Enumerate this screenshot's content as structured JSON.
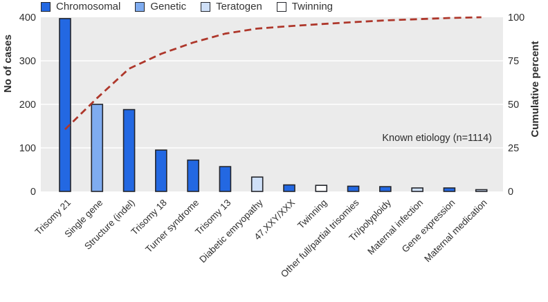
{
  "legend": {
    "items": [
      {
        "label": "Chromosomal",
        "color_key": "chromosomal"
      },
      {
        "label": "Genetic",
        "color_key": "genetic"
      },
      {
        "label": "Teratogen",
        "color_key": "teratogen"
      },
      {
        "label": "Twinning",
        "color_key": "twinning"
      }
    ]
  },
  "chart_data": {
    "type": "bar",
    "subtype": "pareto-with-cumulative-line",
    "categories": [
      "Trisomy 21",
      "Single gene",
      "Structure (indel)",
      "Trisomy 18",
      "Turner syndrome",
      "Trisomy 13",
      "Diabetic emryopathy",
      "47,XXY/XXX",
      "Twinning",
      "Other full/partial trisomies",
      "Tri/polyploidy",
      "Maternal infection",
      "Gene expression",
      "Maternal medication"
    ],
    "values": [
      397,
      200,
      188,
      95,
      72,
      57,
      33,
      15,
      14,
      12,
      11,
      8,
      8,
      4
    ],
    "bar_color_keys": [
      "chromosomal",
      "genetic",
      "chromosomal",
      "chromosomal",
      "chromosomal",
      "chromosomal",
      "teratogen",
      "chromosomal",
      "twinning",
      "chromosomal",
      "chromosomal",
      "teratogen",
      "chromosomal",
      "teratogen"
    ],
    "cumulative_percent": [
      35.6,
      53.6,
      70.5,
      79.0,
      85.5,
      90.6,
      93.5,
      94.9,
      96.1,
      97.2,
      98.2,
      98.9,
      99.6,
      100.0
    ],
    "left_axis": {
      "label": "No of cases",
      "ticks": [
        0,
        100,
        200,
        300,
        400
      ],
      "range": [
        0,
        400
      ]
    },
    "right_axis": {
      "label": "Cumulative percent",
      "ticks": [
        0,
        25,
        50,
        75,
        100
      ],
      "range": [
        0,
        100
      ]
    },
    "annotation": "Known etiology (n=1114)",
    "legend_position": "top-left",
    "grid": "horizontal white gridlines on light gray plot panel",
    "colors": {
      "chromosomal": "#2368e2",
      "genetic": "#7facf0",
      "teratogen": "#cfe0f8",
      "twinning": "#ffffff",
      "bar_border": "#23252b",
      "cumulative_line": "#ae372b",
      "plot_background": "#ebebeb",
      "gridline": "#ffffff",
      "text": "#2e2e2e"
    }
  }
}
